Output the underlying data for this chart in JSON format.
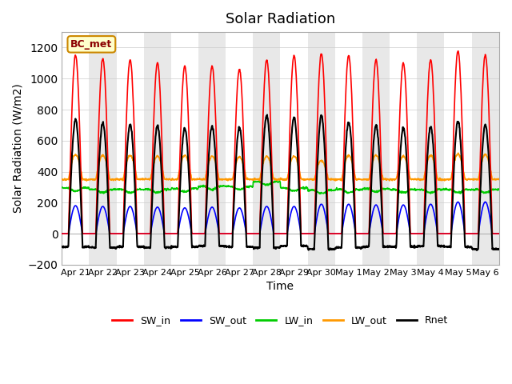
{
  "title": "Solar Radiation",
  "ylabel": "Solar Radiation (W/m2)",
  "xlabel": "Time",
  "ylim": [
    -200,
    1300
  ],
  "yticks": [
    -200,
    0,
    200,
    400,
    600,
    800,
    1000,
    1200
  ],
  "date_labels": [
    "Apr 21",
    "Apr 22",
    "Apr 23",
    "Apr 24",
    "Apr 25",
    "Apr 26",
    "Apr 27",
    "Apr 28",
    "Apr 29",
    "Apr 30",
    "May 1",
    "May 2",
    "May 3",
    "May 4",
    "May 5",
    "May 6"
  ],
  "legend_labels": [
    "SW_in",
    "SW_out",
    "LW_in",
    "LW_out",
    "Rnet"
  ],
  "legend_colors": [
    "#ff0000",
    "#0000ff",
    "#00cc00",
    "#ff9900",
    "#000000"
  ],
  "box_label": "BC_met",
  "box_facecolor": "#ffffcc",
  "box_edgecolor": "#cc8800",
  "sw_in_color": "#ff0000",
  "sw_out_color": "#0000ff",
  "lw_in_color": "#00cc00",
  "lw_out_color": "#ff9900",
  "rnet_color": "#000000",
  "background_color": "#ffffff",
  "num_days": 16,
  "title_fontsize": 13,
  "label_fontsize": 10,
  "peaks_sw_in": [
    1150,
    1130,
    1120,
    1100,
    1080,
    1080,
    1060,
    1120,
    1150,
    1160,
    1150,
    1120,
    1100,
    1120,
    1180,
    1150
  ],
  "peaks_sw_out": [
    190,
    185,
    185,
    180,
    175,
    180,
    175,
    185,
    185,
    200,
    200,
    195,
    195,
    200,
    215,
    215
  ],
  "lw_in_base": [
    295,
    285,
    285,
    285,
    290,
    305,
    305,
    335,
    295,
    280,
    285,
    290,
    285,
    285,
    285,
    285
  ],
  "lw_out_peaks": [
    160,
    155,
    155,
    150,
    155,
    150,
    145,
    150,
    150,
    120,
    155,
    155,
    150,
    155,
    165,
    160
  ],
  "rnet_night": [
    -85,
    -90,
    -85,
    -90,
    -85,
    -80,
    -85,
    -90,
    -80,
    -100,
    -90,
    -85,
    -85,
    -80,
    -85,
    -100
  ]
}
